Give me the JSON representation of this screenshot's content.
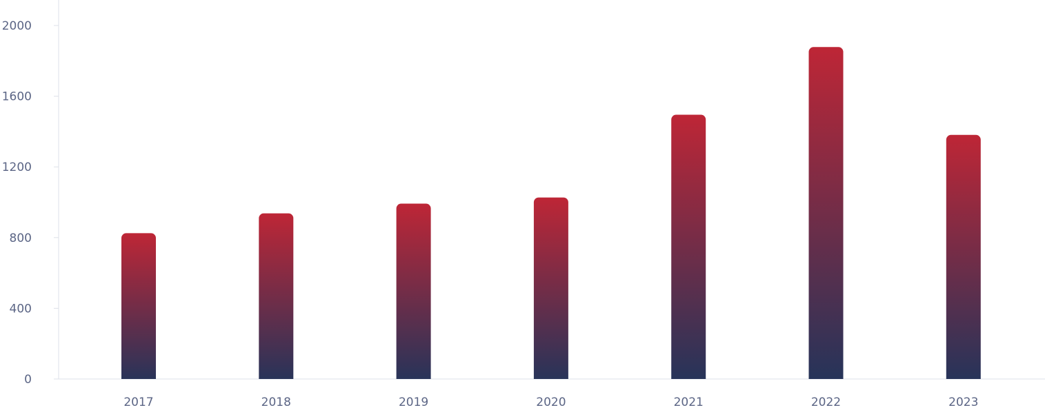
{
  "chart_data": {
    "type": "bar",
    "title": "",
    "xlabel": "",
    "ylabel": "",
    "categories": [
      "2017",
      "2018",
      "2019",
      "2020",
      "2021",
      "2022",
      "2023"
    ],
    "series": [
      {
        "values": [
          825,
          937,
          992,
          1027,
          1495,
          1878,
          1381
        ]
      }
    ],
    "ylim": [
      0,
      2000
    ],
    "yticks": [
      "0",
      "400",
      "800",
      "1200",
      "1600",
      "2000"
    ],
    "grid": false,
    "legend": "none",
    "colors": {
      "bar_top": "#be2636",
      "bar_bottom": "#24345a",
      "axis": "#dde0e8",
      "tick_text": "#5b6585"
    }
  }
}
